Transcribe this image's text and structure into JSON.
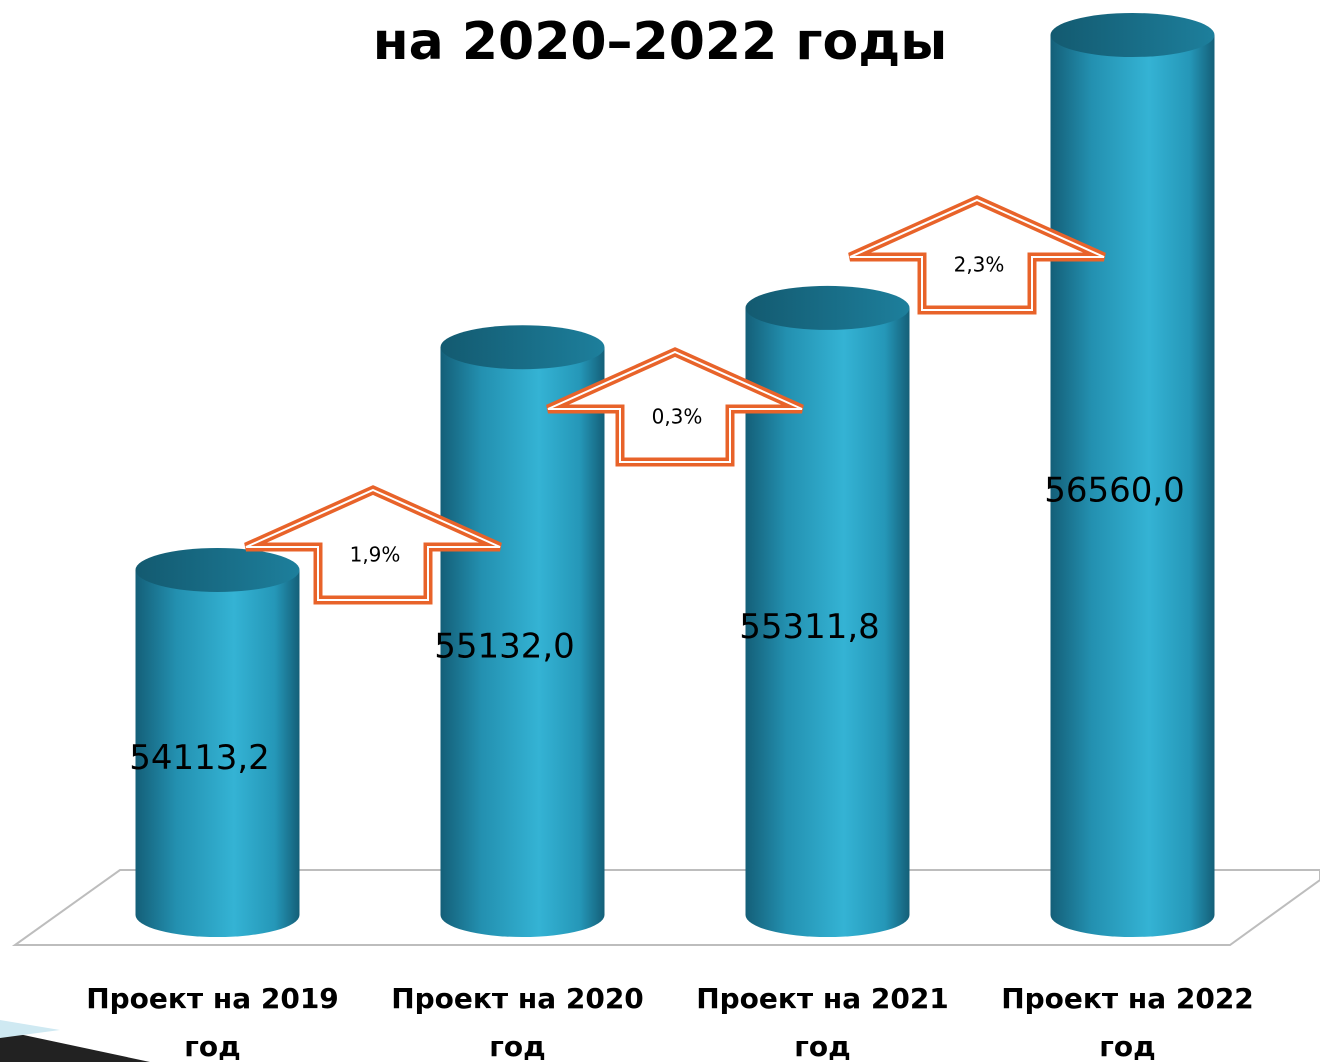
{
  "chart_data": {
    "type": "bar",
    "title": "на 2020–2022 годы",
    "categories": [
      "Проект на 2019 год",
      "Проект на 2020 год",
      "Проект на 2021 год",
      "Проект на 2022 год"
    ],
    "values": [
      54113.2,
      55132.0,
      55311.8,
      56560.0
    ],
    "value_labels": [
      "54113,2",
      "55132,0",
      "55311,8",
      "56560,0"
    ],
    "color": "#2aa5c6",
    "annotations": [
      "1,9%",
      "0,3%",
      "2,3%"
    ],
    "ylim": [
      52535,
      56560
    ]
  }
}
